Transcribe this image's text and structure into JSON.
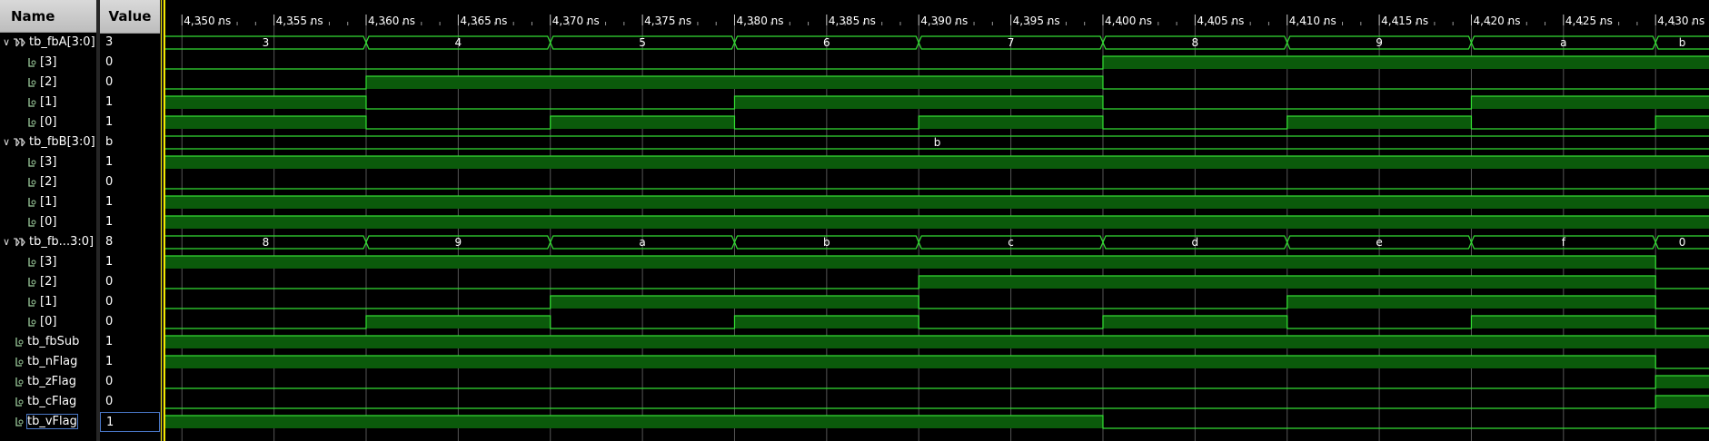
{
  "header": {
    "name_label": "Name",
    "value_label": "Value"
  },
  "time_axis": {
    "start_ns": 4349.1,
    "end_ns": 4432.9,
    "ticks": [
      {
        "t": 4350,
        "label": "4,350 ns"
      },
      {
        "t": 4355,
        "label": "4,355 ns"
      },
      {
        "t": 4360,
        "label": "4,360 ns"
      },
      {
        "t": 4365,
        "label": "4,365 ns"
      },
      {
        "t": 4370,
        "label": "4,370 ns"
      },
      {
        "t": 4375,
        "label": "4,375 ns"
      },
      {
        "t": 4380,
        "label": "4,380 ns"
      },
      {
        "t": 4385,
        "label": "4,385 ns"
      },
      {
        "t": 4390,
        "label": "4,390 ns"
      },
      {
        "t": 4395,
        "label": "4,395 ns"
      },
      {
        "t": 4400,
        "label": "4,400 ns"
      },
      {
        "t": 4405,
        "label": "4,405 ns"
      },
      {
        "t": 4410,
        "label": "4,410 ns"
      },
      {
        "t": 4415,
        "label": "4,415 ns"
      },
      {
        "t": 4420,
        "label": "4,420 ns"
      },
      {
        "t": 4425,
        "label": "4,425 ns"
      },
      {
        "t": 4430,
        "label": "4,430 ns"
      }
    ]
  },
  "colors": {
    "wave_line": "#33dd33",
    "wave_fill": "#0b5a0b",
    "grid": "#555555",
    "tick_text": "#ffffff",
    "cursor": "#f2e600",
    "bus_text": "#ffffff"
  },
  "signals": [
    {
      "name": "tb_fbA[3:0]",
      "value": "3",
      "type": "bus",
      "level": 0,
      "expanded": true,
      "segments": [
        {
          "start": 4349.1,
          "end": 4360,
          "label": "3"
        },
        {
          "start": 4360,
          "end": 4370,
          "label": "4"
        },
        {
          "start": 4370,
          "end": 4380,
          "label": "5"
        },
        {
          "start": 4380,
          "end": 4390,
          "label": "6"
        },
        {
          "start": 4390,
          "end": 4400,
          "label": "7"
        },
        {
          "start": 4400,
          "end": 4410,
          "label": "8"
        },
        {
          "start": 4410,
          "end": 4420,
          "label": "9"
        },
        {
          "start": 4420,
          "end": 4430,
          "label": "a"
        },
        {
          "start": 4430,
          "end": 4432.9,
          "label": "b"
        }
      ]
    },
    {
      "name": "[3]",
      "value": "0",
      "type": "bit",
      "level": 1,
      "segments": [
        {
          "start": 4349.1,
          "end": 4400,
          "v": 0
        },
        {
          "start": 4400,
          "end": 4432.9,
          "v": 1
        }
      ]
    },
    {
      "name": "[2]",
      "value": "0",
      "type": "bit",
      "level": 1,
      "segments": [
        {
          "start": 4349.1,
          "end": 4360,
          "v": 0
        },
        {
          "start": 4360,
          "end": 4400,
          "v": 1
        },
        {
          "start": 4400,
          "end": 4432.9,
          "v": 0
        }
      ]
    },
    {
      "name": "[1]",
      "value": "1",
      "type": "bit",
      "level": 1,
      "segments": [
        {
          "start": 4349.1,
          "end": 4360,
          "v": 1
        },
        {
          "start": 4360,
          "end": 4380,
          "v": 0
        },
        {
          "start": 4380,
          "end": 4400,
          "v": 1
        },
        {
          "start": 4400,
          "end": 4420,
          "v": 0
        },
        {
          "start": 4420,
          "end": 4432.9,
          "v": 1
        }
      ]
    },
    {
      "name": "[0]",
      "value": "1",
      "type": "bit",
      "level": 1,
      "segments": [
        {
          "start": 4349.1,
          "end": 4360,
          "v": 1
        },
        {
          "start": 4360,
          "end": 4370,
          "v": 0
        },
        {
          "start": 4370,
          "end": 4380,
          "v": 1
        },
        {
          "start": 4380,
          "end": 4390,
          "v": 0
        },
        {
          "start": 4390,
          "end": 4400,
          "v": 1
        },
        {
          "start": 4400,
          "end": 4410,
          "v": 0
        },
        {
          "start": 4410,
          "end": 4420,
          "v": 1
        },
        {
          "start": 4420,
          "end": 4430,
          "v": 0
        },
        {
          "start": 4430,
          "end": 4432.9,
          "v": 1
        }
      ]
    },
    {
      "name": "tb_fbB[3:0]",
      "value": "b",
      "type": "bus",
      "level": 0,
      "expanded": true,
      "segments": [
        {
          "start": 4349.1,
          "end": 4432.9,
          "label": "b"
        }
      ]
    },
    {
      "name": "[3]",
      "value": "1",
      "type": "bit",
      "level": 1,
      "segments": [
        {
          "start": 4349.1,
          "end": 4432.9,
          "v": 1
        }
      ]
    },
    {
      "name": "[2]",
      "value": "0",
      "type": "bit",
      "level": 1,
      "segments": [
        {
          "start": 4349.1,
          "end": 4432.9,
          "v": 0
        }
      ]
    },
    {
      "name": "[1]",
      "value": "1",
      "type": "bit",
      "level": 1,
      "segments": [
        {
          "start": 4349.1,
          "end": 4432.9,
          "v": 1
        }
      ]
    },
    {
      "name": "[0]",
      "value": "1",
      "type": "bit",
      "level": 1,
      "segments": [
        {
          "start": 4349.1,
          "end": 4432.9,
          "v": 1
        }
      ]
    },
    {
      "name": "tb_fb...3:0]",
      "value": "8",
      "type": "bus",
      "level": 0,
      "expanded": true,
      "segments": [
        {
          "start": 4349.1,
          "end": 4360,
          "label": "8"
        },
        {
          "start": 4360,
          "end": 4370,
          "label": "9"
        },
        {
          "start": 4370,
          "end": 4380,
          "label": "a"
        },
        {
          "start": 4380,
          "end": 4390,
          "label": "b"
        },
        {
          "start": 4390,
          "end": 4400,
          "label": "c"
        },
        {
          "start": 4400,
          "end": 4410,
          "label": "d"
        },
        {
          "start": 4410,
          "end": 4420,
          "label": "e"
        },
        {
          "start": 4420,
          "end": 4430,
          "label": "f"
        },
        {
          "start": 4430,
          "end": 4432.9,
          "label": "0"
        }
      ]
    },
    {
      "name": "[3]",
      "value": "1",
      "type": "bit",
      "level": 1,
      "segments": [
        {
          "start": 4349.1,
          "end": 4430,
          "v": 1
        },
        {
          "start": 4430,
          "end": 4432.9,
          "v": 0
        }
      ]
    },
    {
      "name": "[2]",
      "value": "0",
      "type": "bit",
      "level": 1,
      "segments": [
        {
          "start": 4349.1,
          "end": 4390,
          "v": 0
        },
        {
          "start": 4390,
          "end": 4430,
          "v": 1
        },
        {
          "start": 4430,
          "end": 4432.9,
          "v": 0
        }
      ]
    },
    {
      "name": "[1]",
      "value": "0",
      "type": "bit",
      "level": 1,
      "segments": [
        {
          "start": 4349.1,
          "end": 4370,
          "v": 0
        },
        {
          "start": 4370,
          "end": 4390,
          "v": 1
        },
        {
          "start": 4390,
          "end": 4410,
          "v": 0
        },
        {
          "start": 4410,
          "end": 4430,
          "v": 1
        },
        {
          "start": 4430,
          "end": 4432.9,
          "v": 0
        }
      ]
    },
    {
      "name": "[0]",
      "value": "0",
      "type": "bit",
      "level": 1,
      "segments": [
        {
          "start": 4349.1,
          "end": 4360,
          "v": 0
        },
        {
          "start": 4360,
          "end": 4370,
          "v": 1
        },
        {
          "start": 4370,
          "end": 4380,
          "v": 0
        },
        {
          "start": 4380,
          "end": 4390,
          "v": 1
        },
        {
          "start": 4390,
          "end": 4400,
          "v": 0
        },
        {
          "start": 4400,
          "end": 4410,
          "v": 1
        },
        {
          "start": 4410,
          "end": 4420,
          "v": 0
        },
        {
          "start": 4420,
          "end": 4430,
          "v": 1
        },
        {
          "start": 4430,
          "end": 4432.9,
          "v": 0
        }
      ]
    },
    {
      "name": "tb_fbSub",
      "value": "1",
      "type": "bit",
      "level": 0,
      "segments": [
        {
          "start": 4349.1,
          "end": 4432.9,
          "v": 1
        }
      ]
    },
    {
      "name": "tb_nFlag",
      "value": "1",
      "type": "bit",
      "level": 0,
      "segments": [
        {
          "start": 4349.1,
          "end": 4430,
          "v": 1
        },
        {
          "start": 4430,
          "end": 4432.9,
          "v": 0
        }
      ]
    },
    {
      "name": "tb_zFlag",
      "value": "0",
      "type": "bit",
      "level": 0,
      "segments": [
        {
          "start": 4349.1,
          "end": 4430,
          "v": 0
        },
        {
          "start": 4430,
          "end": 4432.9,
          "v": 1
        }
      ]
    },
    {
      "name": "tb_cFlag",
      "value": "0",
      "type": "bit",
      "level": 0,
      "segments": [
        {
          "start": 4349.1,
          "end": 4430,
          "v": 0
        },
        {
          "start": 4430,
          "end": 4432.9,
          "v": 1
        }
      ]
    },
    {
      "name": "tb_vFlag",
      "value": "1",
      "type": "bit",
      "level": 0,
      "selected": true,
      "segments": [
        {
          "start": 4349.1,
          "end": 4400,
          "v": 1
        },
        {
          "start": 4400,
          "end": 4432.9,
          "v": 0
        }
      ]
    }
  ]
}
